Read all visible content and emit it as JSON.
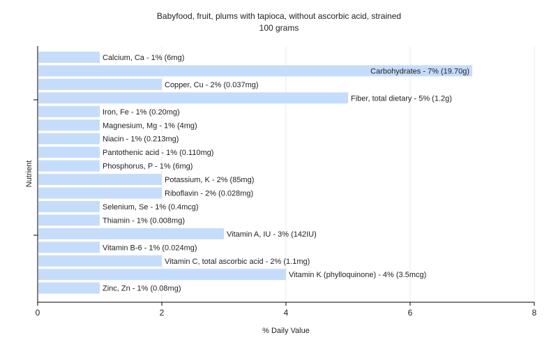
{
  "chart_data": {
    "type": "bar",
    "orientation": "horizontal",
    "title": "Babyfood, fruit, plums with tapioca, without ascorbic acid, strained",
    "subtitle": "100 grams",
    "xlabel": "% Daily Value",
    "ylabel": "Nutrient",
    "xlim": [
      0,
      8
    ],
    "xticks": [
      0,
      2,
      4,
      6,
      8
    ],
    "grid": true,
    "bar_color": "#c6dcfb",
    "categories": [
      "Calcium, Ca",
      "Carbohydrates",
      "Copper, Cu",
      "Fiber, total dietary",
      "Iron, Fe",
      "Magnesium, Mg",
      "Niacin",
      "Pantothenic acid",
      "Phosphorus, P",
      "Potassium, K",
      "Riboflavin",
      "Selenium, Se",
      "Thiamin",
      "Vitamin A, IU",
      "Vitamin B-6",
      "Vitamin C, total ascorbic acid",
      "Vitamin K (phylloquinone)",
      "Zinc, Zn"
    ],
    "values": [
      1,
      7,
      2,
      5,
      1,
      1,
      1,
      1,
      1,
      2,
      2,
      1,
      1,
      3,
      1,
      2,
      4,
      1
    ],
    "labels": [
      "Calcium, Ca - 1% (6mg)",
      "Carbohydrates - 7% (19.70g)",
      "Copper, Cu - 2% (0.037mg)",
      "Fiber, total dietary - 5% (1.2g)",
      "Iron, Fe - 1% (0.20mg)",
      "Magnesium, Mg - 1% (4mg)",
      "Niacin - 1% (0.213mg)",
      "Pantothenic acid - 1% (0.110mg)",
      "Phosphorus, P - 1% (6mg)",
      "Potassium, K - 2% (85mg)",
      "Riboflavin - 2% (0.028mg)",
      "Selenium, Se - 1% (0.4mcg)",
      "Thiamin - 1% (0.008mg)",
      "Vitamin A, IU - 3% (142IU)",
      "Vitamin B-6 - 1% (0.024mg)",
      "Vitamin C, total ascorbic acid - 2% (1.1mg)",
      "Vitamin K (phylloquinone) - 4% (3.5mcg)",
      "Zinc, Zn - 1% (0.08mg)"
    ]
  }
}
